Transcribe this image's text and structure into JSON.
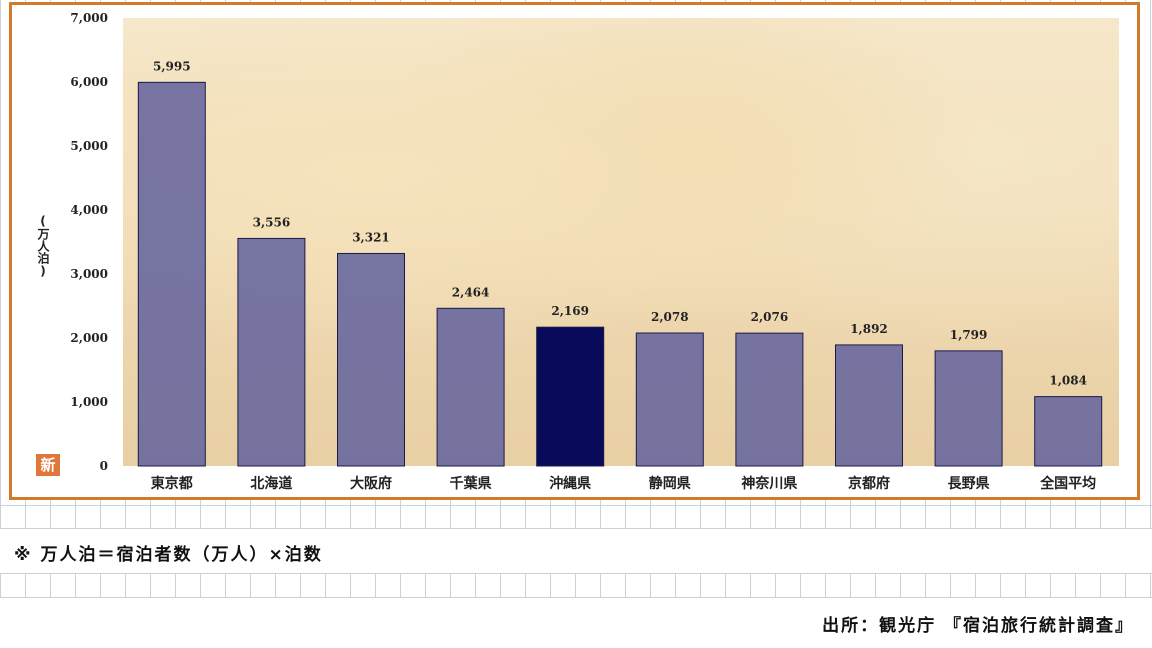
{
  "chart_data": {
    "type": "bar",
    "categories": [
      "東京都",
      "北海道",
      "大阪府",
      "千葉県",
      "沖縄県",
      "静岡県",
      "神奈川県",
      "京都府",
      "長野県",
      "全国平均"
    ],
    "values": [
      5995,
      3556,
      3321,
      2464,
      2169,
      2078,
      2076,
      1892,
      1799,
      1084
    ],
    "value_labels": [
      "5,995",
      "3,556",
      "3,321",
      "2,464",
      "2,169",
      "2,078",
      "2,076",
      "1,892",
      "1,799",
      "1,084"
    ],
    "highlight": "沖縄県",
    "ylabel": "(万人泊)",
    "ylim": [
      0,
      7000
    ],
    "yticks": [
      0,
      1000,
      2000,
      3000,
      4000,
      5000,
      6000,
      7000
    ],
    "ytick_labels": [
      "0",
      "1,000",
      "2,000",
      "3,000",
      "4,000",
      "5,000",
      "6,000",
      "7,000"
    ],
    "colors": {
      "bar": "#6b6a9e",
      "highlight_bar": "#0a0a5a",
      "frame": "#d07a2a"
    }
  },
  "badge": "新",
  "note": "※ 万人泊＝宿泊者数（万人）×泊数",
  "source": "出所：観光庁 『宿泊旅行統計調査』"
}
